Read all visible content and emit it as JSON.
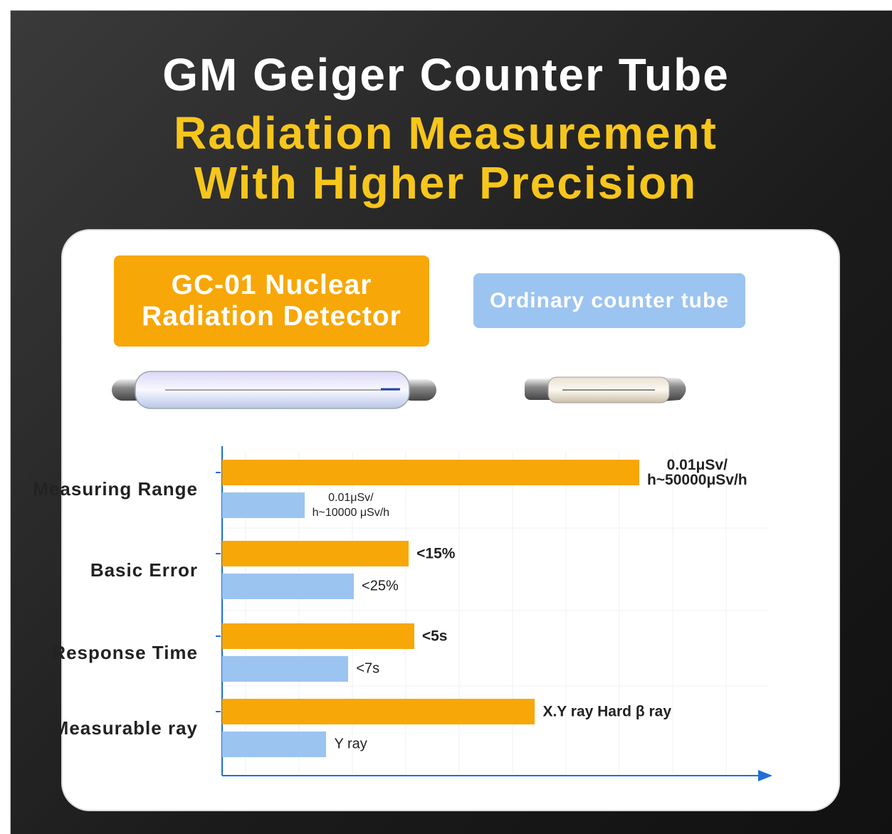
{
  "chart_data": {
    "type": "bar",
    "orientation": "horizontal",
    "title": "GM Geiger Counter Tube",
    "subtitle": "Radiation Measurement With Higher Precision",
    "categories": [
      "Measuring Range",
      "Basic Error",
      "Response Time",
      "Measurable ray"
    ],
    "xlim": [
      0,
      100
    ],
    "series": [
      {
        "name": "GC-01 Nuclear Radiation Detector",
        "color": "#f7a707",
        "values": [
          76,
          34,
          35,
          57
        ],
        "value_labels": [
          "0.01μSv/\nh~50000μSv/h",
          "<15%",
          "<5s",
          "X.Y ray Hard β ray"
        ]
      },
      {
        "name": "Ordinary counter tube",
        "color": "#9cc4f0",
        "values": [
          15,
          24,
          23,
          19
        ],
        "value_labels": [
          "0.01μSv/\nh~10000 μSv/h",
          "<25%",
          "<7s",
          "Y ray"
        ]
      }
    ]
  }
}
